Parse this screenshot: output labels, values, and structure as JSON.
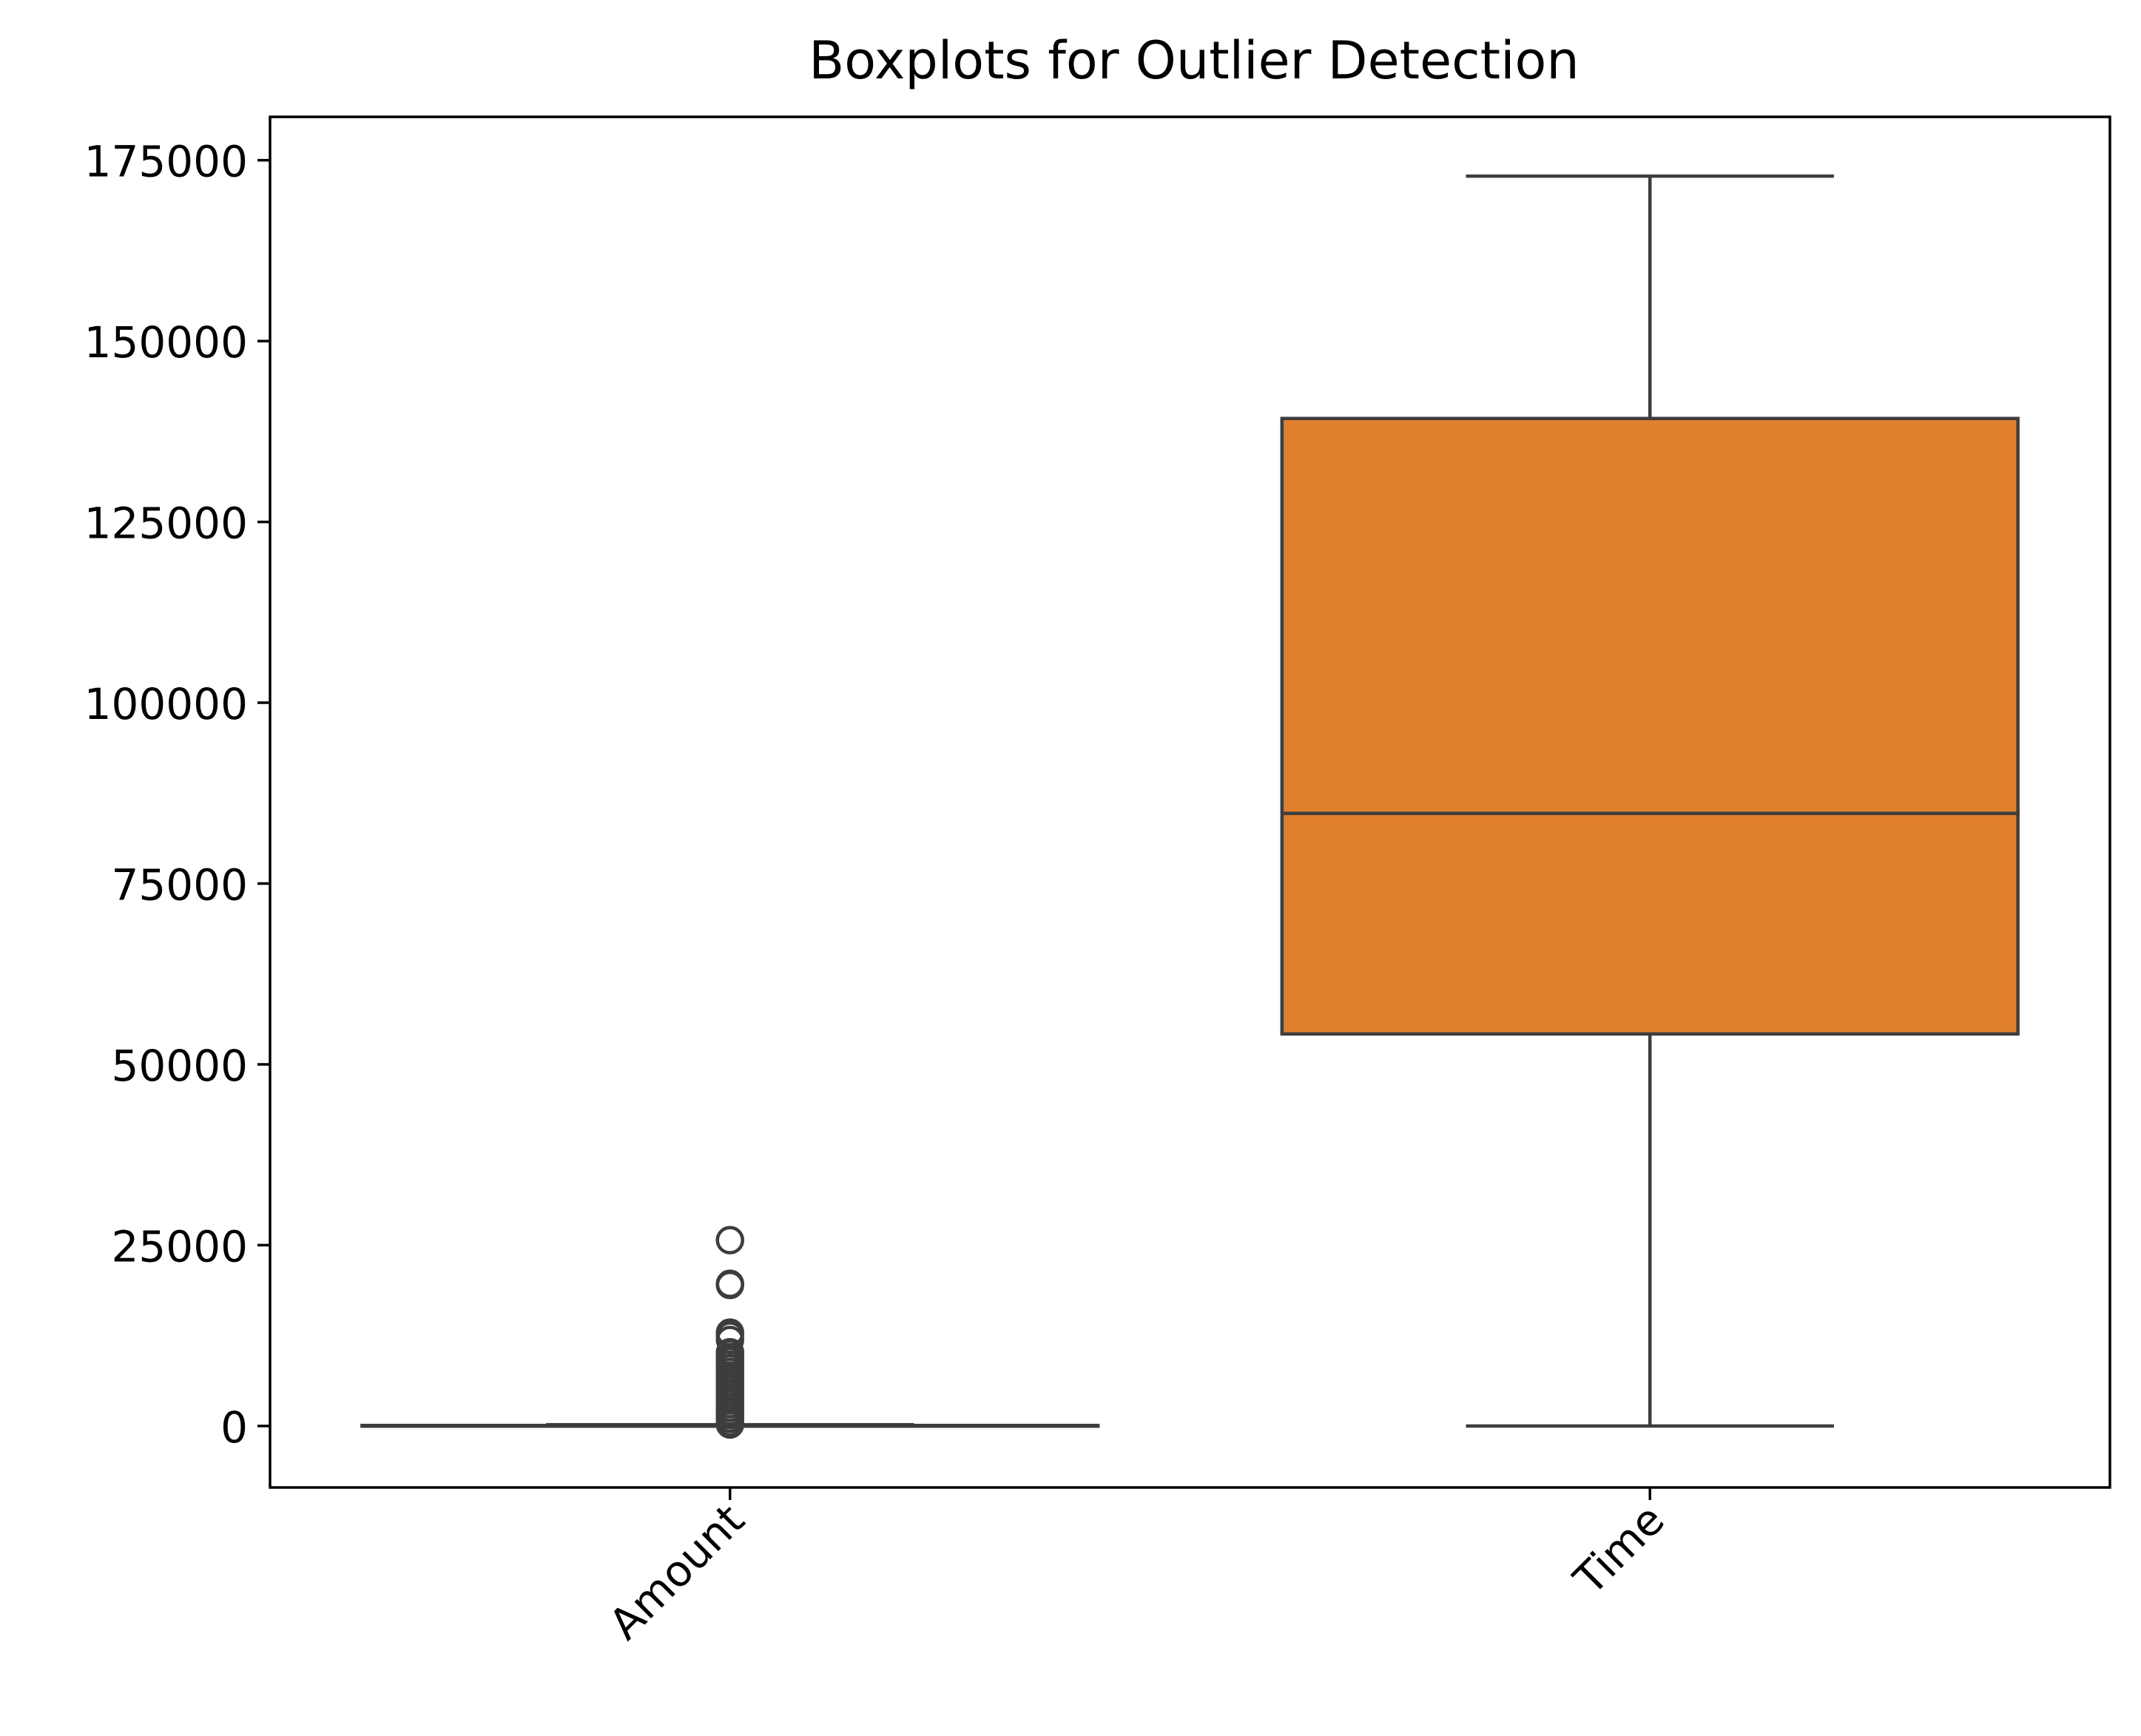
{
  "chart_data": {
    "type": "box",
    "title": "Boxplots for Outlier Detection",
    "xlabel": "",
    "ylabel": "",
    "categories": [
      "Amount",
      "Time"
    ],
    "ylim": [
      -8500,
      181000
    ],
    "yticks": [
      0,
      25000,
      50000,
      75000,
      100000,
      125000,
      150000,
      175000
    ],
    "ytick_labels": [
      "0",
      "25000",
      "50000",
      "75000",
      "100000",
      "125000",
      "150000",
      "175000"
    ],
    "xtick_rotation_deg": -45,
    "grid": false,
    "legend": "none",
    "boxes": [
      {
        "category": "Amount",
        "color": "#1f77b4",
        "min": 0,
        "q1": 6,
        "median": 22,
        "q3": 77,
        "max": 185,
        "outliers": [
          25691,
          19656,
          19500,
          12910,
          12500,
          11898,
          10199,
          10000,
          9500,
          9000,
          8500,
          8000,
          7500,
          7000,
          6500,
          6000,
          5500,
          5000,
          4500,
          4000,
          3500,
          3000,
          2500,
          2000,
          1500,
          1000,
          500,
          200
        ]
      },
      {
        "category": "Time",
        "color": "#e07f2c",
        "min": 0,
        "q1": 54200,
        "median": 84700,
        "q3": 139300,
        "max": 172800,
        "outliers": []
      }
    ],
    "colors": {
      "line": "#3d3d3d",
      "axes": "#000000",
      "time_box": "#e07f2c"
    }
  }
}
